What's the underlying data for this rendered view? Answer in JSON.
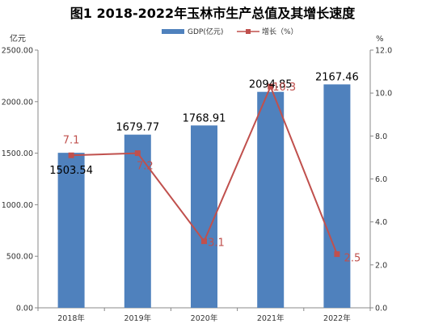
{
  "chart_data": {
    "type": "bar",
    "title": "图1  2018-2022年玉林市生产总值及其增长速度",
    "categories": [
      "2018年",
      "2019年",
      "2020年",
      "2021年",
      "2022年"
    ],
    "left_axis": {
      "unit": "亿元",
      "ylim": [
        0,
        2500
      ],
      "ticks": [
        "0.00",
        "500.00",
        "1000.00",
        "1500.00",
        "2000.00",
        "2500.00"
      ]
    },
    "right_axis": {
      "unit": "%",
      "ylim": [
        0,
        12
      ],
      "ticks": [
        "0.0",
        "2.0",
        "4.0",
        "6.0",
        "8.0",
        "10.0",
        "12.0"
      ]
    },
    "series": [
      {
        "name": "GDP(亿元)",
        "type": "bar",
        "axis": "left",
        "color": "#4f81bd",
        "values": [
          1503.54,
          1679.77,
          1768.91,
          2094.85,
          2167.46
        ],
        "labels": [
          "1503.54",
          "1679.77",
          "1768.91",
          "2094.85",
          "2167.46"
        ]
      },
      {
        "name": "增长（%）",
        "type": "line",
        "axis": "right",
        "color": "#c0504d",
        "values": [
          7.1,
          7.2,
          3.1,
          10.3,
          2.5
        ],
        "labels": [
          "7.1",
          "7.2",
          "3.1",
          "10.3",
          "2.5"
        ]
      }
    ],
    "legend": {
      "position": "top-center"
    },
    "grid": false
  }
}
